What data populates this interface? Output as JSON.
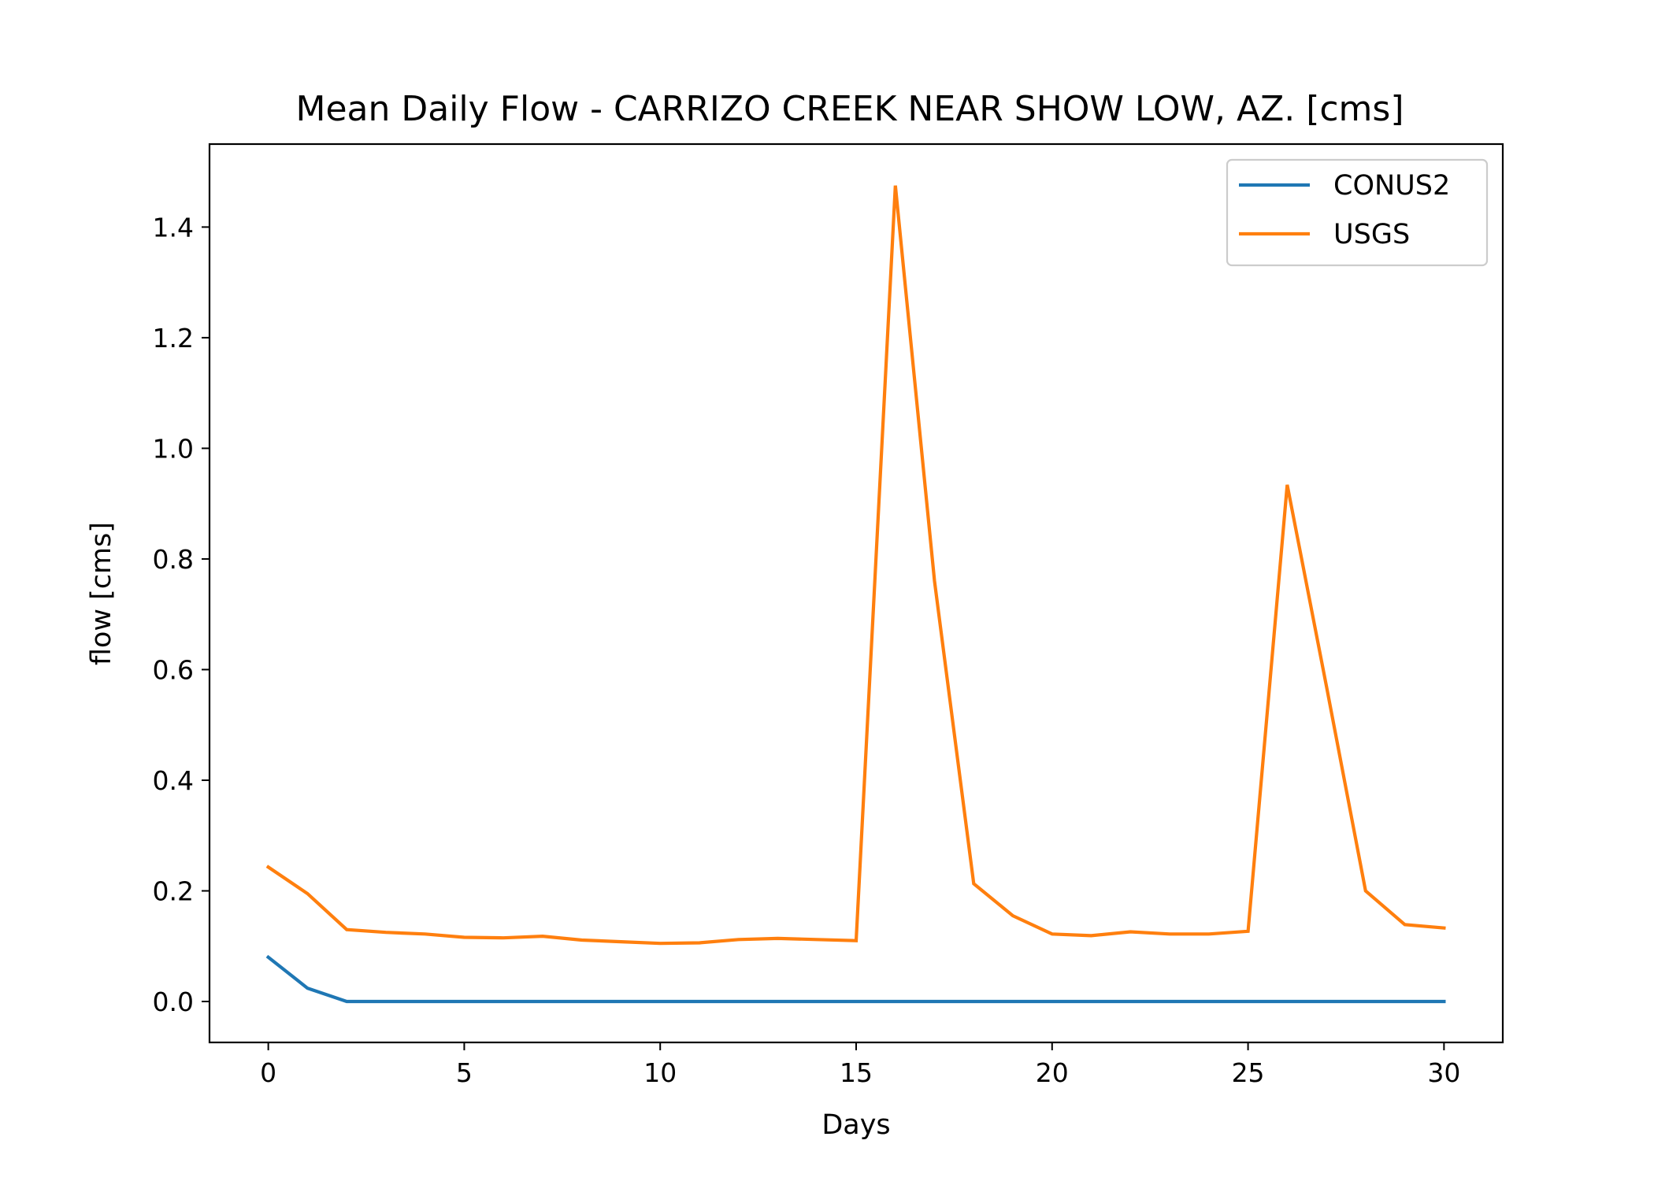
{
  "chart_data": {
    "type": "line",
    "title": "Mean Daily Flow - CARRIZO CREEK NEAR SHOW LOW, AZ. [cms]",
    "xlabel": "Days",
    "ylabel": "flow [cms]",
    "xlim": [
      -1.5,
      31.5
    ],
    "ylim": [
      -0.074,
      1.55
    ],
    "xticks": [
      0,
      5,
      10,
      15,
      20,
      25,
      30
    ],
    "xtick_labels": [
      "0",
      "5",
      "10",
      "15",
      "20",
      "25",
      "30"
    ],
    "yticks": [
      0.0,
      0.2,
      0.4,
      0.6,
      0.8,
      1.0,
      1.2,
      1.4
    ],
    "ytick_labels": [
      "0.0",
      "0.2",
      "0.4",
      "0.6",
      "0.8",
      "1.0",
      "1.2",
      "1.4"
    ],
    "grid": false,
    "legend_position": "top-right",
    "x": [
      0,
      1,
      2,
      3,
      4,
      5,
      6,
      7,
      8,
      9,
      10,
      11,
      12,
      13,
      14,
      15,
      16,
      17,
      18,
      19,
      20,
      21,
      22,
      23,
      24,
      25,
      26,
      27,
      28,
      29,
      30
    ],
    "series": [
      {
        "name": "CONUS2",
        "color": "#1f77b4",
        "values": [
          0.08,
          0.024,
          0.0,
          0.0,
          0.0,
          0.0,
          0.0,
          0.0,
          0.0,
          0.0,
          0.0,
          0.0,
          0.0,
          0.0,
          0.0,
          0.0,
          0.0,
          0.0,
          0.0,
          0.0,
          0.0,
          0.0,
          0.0,
          0.0,
          0.0,
          0.0,
          0.0,
          0.0,
          0.0,
          0.0,
          0.0
        ]
      },
      {
        "name": "USGS",
        "color": "#ff7f0e",
        "values": [
          0.243,
          0.195,
          0.13,
          0.125,
          0.122,
          0.116,
          0.115,
          0.118,
          0.111,
          0.108,
          0.105,
          0.106,
          0.112,
          0.114,
          0.112,
          0.11,
          1.475,
          0.76,
          0.213,
          0.155,
          0.122,
          0.119,
          0.126,
          0.122,
          0.122,
          0.127,
          0.934,
          0.57,
          0.2,
          0.139,
          0.133
        ]
      }
    ]
  }
}
